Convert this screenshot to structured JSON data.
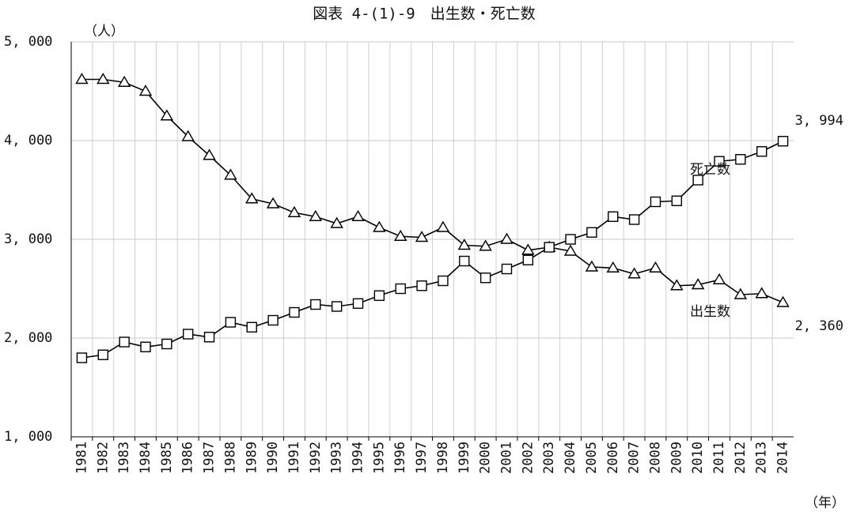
{
  "chart_data": {
    "type": "line",
    "title": "図表 4-(1)-9　出生数・死亡数",
    "y_label": "（人）",
    "x_label": "（年）",
    "categories": [
      "1981",
      "1982",
      "1983",
      "1984",
      "1985",
      "1986",
      "1987",
      "1988",
      "1989",
      "1990",
      "1991",
      "1992",
      "1993",
      "1994",
      "1995",
      "1996",
      "1997",
      "1998",
      "1999",
      "2000",
      "2001",
      "2002",
      "2003",
      "2004",
      "2005",
      "2006",
      "2007",
      "2008",
      "2009",
      "2010",
      "2011",
      "2012",
      "2013",
      "2014"
    ],
    "series": [
      {
        "name": "出生数",
        "marker": "triangle",
        "color": "#000000",
        "values": [
          4620,
          4620,
          4590,
          4500,
          4250,
          4040,
          3850,
          3650,
          3410,
          3360,
          3270,
          3230,
          3160,
          3230,
          3120,
          3030,
          3020,
          3120,
          2940,
          2930,
          3000,
          2890,
          2920,
          2880,
          2720,
          2710,
          2650,
          2710,
          2530,
          2540,
          2590,
          2440,
          2450,
          2360
        ],
        "value_labels": [
          null,
          null,
          null,
          null,
          null,
          null,
          null,
          null,
          null,
          null,
          null,
          null,
          null,
          null,
          null,
          null,
          null,
          null,
          null,
          null,
          null,
          null,
          null,
          null,
          null,
          null,
          null,
          null,
          null,
          null,
          null,
          null,
          null,
          "2, 360"
        ]
      },
      {
        "name": "死亡数",
        "marker": "square",
        "color": "#000000",
        "values": [
          1800,
          1830,
          1960,
          1910,
          1940,
          2040,
          2010,
          2160,
          2110,
          2180,
          2260,
          2340,
          2320,
          2350,
          2430,
          2500,
          2530,
          2580,
          2780,
          2610,
          2700,
          2790,
          2920,
          3000,
          3070,
          3230,
          3200,
          3380,
          3390,
          3600,
          3790,
          3810,
          3890,
          3994
        ],
        "value_labels": [
          null,
          null,
          null,
          null,
          null,
          null,
          null,
          null,
          null,
          null,
          null,
          null,
          null,
          null,
          null,
          null,
          null,
          null,
          null,
          null,
          null,
          null,
          null,
          null,
          null,
          null,
          null,
          null,
          null,
          null,
          null,
          null,
          null,
          "3, 994"
        ]
      }
    ],
    "ylim": [
      1000,
      5000
    ],
    "yticks": [
      {
        "value": 1000,
        "label": "1, 000"
      },
      {
        "value": 2000,
        "label": "2, 000"
      },
      {
        "value": 3000,
        "label": "3, 000"
      },
      {
        "value": 4000,
        "label": "4, 000"
      },
      {
        "value": 5000,
        "label": "5, 000"
      }
    ],
    "grid": true
  }
}
